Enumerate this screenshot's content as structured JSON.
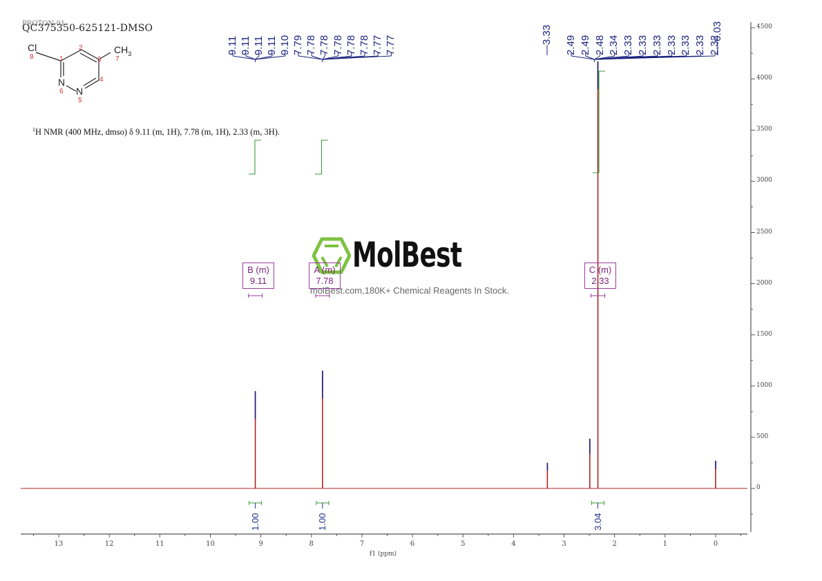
{
  "header": {
    "proton_label": "PROTON-01",
    "sample_id": "QC375350-625121-DMSO",
    "nmr_summary_prefix": "1",
    "nmr_summary": "H NMR (400 MHz, dmso) δ 9.11 (m, 1H), 7.78 (m, 1H), 2.33 (m, 3H)."
  },
  "structure": {
    "atoms": [
      {
        "label": "Cl",
        "num": "8"
      },
      {
        "label": "C",
        "num": "1"
      },
      {
        "label": "C",
        "num": "2"
      },
      {
        "label": "C",
        "num": "3"
      },
      {
        "label": "C",
        "num": "4"
      },
      {
        "label": "N",
        "num": "5"
      },
      {
        "label": "N",
        "num": "6"
      },
      {
        "label": "CH3",
        "num": "7"
      }
    ],
    "cl_label": "Cl",
    "ch3_label": "CH",
    "ch3_sub": "3",
    "n5_label": "N",
    "n6_label": "N",
    "nums": {
      "n1": "1",
      "n2": "2",
      "n3": "3",
      "n4": "4",
      "n5": "5",
      "n6": "6",
      "n7": "7",
      "n8": "8"
    }
  },
  "watermark": {
    "title": "MolBest",
    "subtitle": "molBest.com,180K+ Chemical Reagents In Stock.",
    "logo_color": "#7dc242"
  },
  "multiplets": [
    {
      "name": "B (m)",
      "shift": "9.11"
    },
    {
      "name": "A (m)",
      "shift": "7.78"
    },
    {
      "name": "C (m)",
      "shift": "2.33"
    }
  ],
  "colors": {
    "spectrum": "#b22222",
    "peak_top": "#1a237e",
    "integral": "#3a9a3a",
    "multiplet_box": "#9b3b9b",
    "axis": "#555555"
  },
  "chart_data": {
    "type": "line",
    "title": "QC375350-625121-DMSO",
    "subtitle": "1H NMR (400 MHz, dmso) δ 9.11 (m, 1H), 7.78 (m, 1H), 2.33 (m, 3H).",
    "xlabel": "f1 (ppm)",
    "ylabel": "",
    "xlim": [
      13.7,
      -0.6
    ],
    "ylim": [
      -450,
      4550
    ],
    "x_ticks": [
      13,
      12,
      11,
      10,
      9,
      8,
      7,
      6,
      5,
      4,
      3,
      2,
      1,
      0
    ],
    "y_ticks": [
      0,
      500,
      1000,
      1500,
      2000,
      2500,
      3000,
      3500,
      4000,
      4500
    ],
    "grid": false,
    "y_axis_position": "right",
    "peaks": [
      {
        "ppm": 9.11,
        "intensity": 950
      },
      {
        "ppm": 7.78,
        "intensity": 1150
      },
      {
        "ppm": 3.33,
        "intensity": 250
      },
      {
        "ppm": 2.49,
        "intensity": 485
      },
      {
        "ppm": 2.33,
        "intensity": 4170
      },
      {
        "ppm": 0.0,
        "intensity": 270
      }
    ],
    "peak_labels_group1": [
      "9.11",
      "9.11",
      "9.11",
      "9.11",
      "9.10"
    ],
    "peak_labels_group2": [
      "7.79",
      "7.78",
      "7.78",
      "7.78",
      "7.78",
      "7.78",
      "7.77",
      "7.77"
    ],
    "peak_labels_single": [
      "3.33"
    ],
    "peak_labels_group3": [
      "2.49",
      "2.49",
      "2.48",
      "2.34",
      "2.33",
      "2.33",
      "2.33",
      "2.33",
      "2.33",
      "2.33",
      "2.32"
    ],
    "peak_labels_tms": [
      "-0.03"
    ],
    "integrals": [
      {
        "ppm": 9.11,
        "value": "1.00"
      },
      {
        "ppm": 7.78,
        "value": "1.00"
      },
      {
        "ppm": 2.33,
        "value": "3.04"
      }
    ],
    "multiplets": [
      {
        "label": "B (m)",
        "shift": 9.11
      },
      {
        "label": "A (m)",
        "shift": 7.78
      },
      {
        "label": "C (m)",
        "shift": 2.33
      }
    ]
  }
}
